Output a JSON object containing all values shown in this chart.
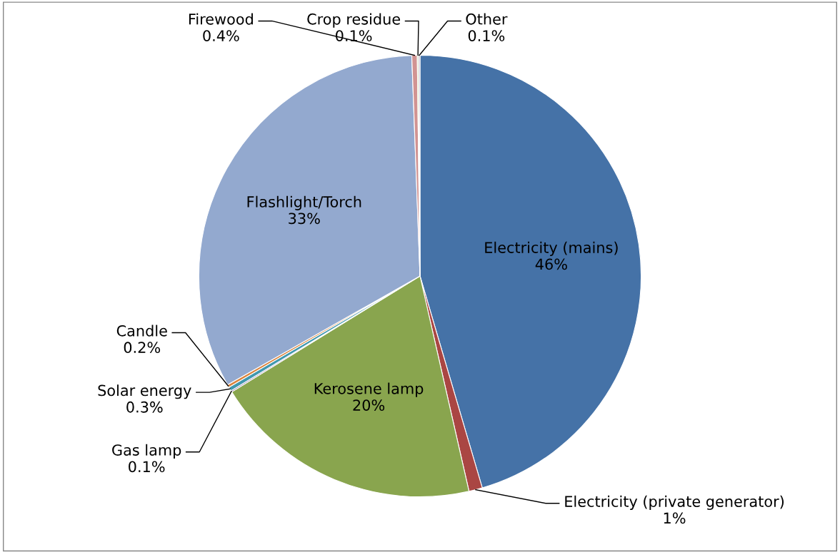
{
  "chart_data": {
    "type": "pie",
    "categories": [
      "Electricity (mains)",
      "Electricity (private generator)",
      "Kerosene lamp",
      "Gas lamp",
      "Solar energy",
      "Candle",
      "Flashlight/Torch",
      "Firewood",
      "Crop residue",
      "Other"
    ],
    "values": [
      46,
      1,
      20,
      0.1,
      0.3,
      0.2,
      33,
      0.4,
      0.1,
      0.1
    ],
    "value_labels": [
      "46%",
      "1%",
      "20%",
      "0.1%",
      "0.3%",
      "0.2%",
      "33%",
      "0.4%",
      "0.1%",
      "0.1%"
    ],
    "colors": [
      "#4572a7",
      "#aa4643",
      "#89a54e",
      "#71588f",
      "#4198af",
      "#db843d",
      "#93a9cf",
      "#d19392",
      "#b9cd96",
      "#a99bbd"
    ]
  }
}
